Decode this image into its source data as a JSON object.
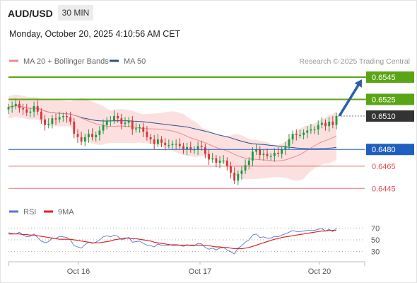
{
  "header": {
    "symbol": "AUD/USD",
    "timeframe": "30 MIN",
    "datetime": "Monday, October 20, 2025 4:10:56 AM CET"
  },
  "chart_data": [
    {
      "type": "candlestick",
      "legend": [
        {
          "label": "MA 20 + Bollinger Bands",
          "color": "#f08a8a"
        },
        {
          "label": "MA 50",
          "color": "#2a4f8f"
        }
      ],
      "credit": "Research © 2025 Trading Central",
      "x_ticks": [
        "Oct 16",
        "Oct 17",
        "Oct 20"
      ],
      "ylim": [
        0.6435,
        0.6552
      ],
      "levels": [
        {
          "value": 0.6545,
          "label": "0.6545",
          "style": "target",
          "color": "#5aa516"
        },
        {
          "value": 0.6525,
          "label": "0.6525",
          "style": "target",
          "color": "#5aa516"
        },
        {
          "value": 0.651,
          "label": "0.6510",
          "style": "current",
          "color": "#333333"
        },
        {
          "value": 0.648,
          "label": "0.6480",
          "style": "pivot",
          "color": "#1f5fbf"
        },
        {
          "value": 0.6465,
          "label": "0.6465",
          "style": "support",
          "color": "#e05050"
        },
        {
          "value": 0.6445,
          "label": "0.6445",
          "style": "support",
          "color": "#e05050"
        }
      ],
      "colors": {
        "up": "#1e9a3e",
        "down": "#d93535",
        "band_fill": "#fbd6d6",
        "ma20": "#f08a8a",
        "ma50": "#2a4f8f",
        "arrow": "#2a5fa8"
      },
      "series": {
        "close": [
          0.6518,
          0.6519,
          0.6521,
          0.6517,
          0.6516,
          0.6513,
          0.6514,
          0.6519,
          0.6514,
          0.6507,
          0.6502,
          0.6503,
          0.6508,
          0.6507,
          0.6509,
          0.651,
          0.6509,
          0.6505,
          0.6494,
          0.6491,
          0.6487,
          0.6491,
          0.6494,
          0.6491,
          0.6493,
          0.6497,
          0.6502,
          0.6506,
          0.6506,
          0.651,
          0.6508,
          0.6503,
          0.6504,
          0.6506,
          0.6498,
          0.6499,
          0.65,
          0.6496,
          0.6491,
          0.6489,
          0.6485,
          0.6489,
          0.6486,
          0.6484,
          0.6484,
          0.6485,
          0.6485,
          0.6483,
          0.648,
          0.6482,
          0.648,
          0.648,
          0.6483,
          0.6482,
          0.6476,
          0.6471,
          0.6472,
          0.6468,
          0.647,
          0.647,
          0.6465,
          0.6459,
          0.6452,
          0.6458,
          0.6461,
          0.6466,
          0.647,
          0.6478,
          0.648,
          0.6475,
          0.6476,
          0.6474,
          0.6474,
          0.6477,
          0.6476,
          0.648,
          0.6483,
          0.6489,
          0.6494,
          0.6493,
          0.6493,
          0.6495,
          0.6497,
          0.6498,
          0.6498,
          0.6502,
          0.6504,
          0.6501,
          0.6505,
          0.6502,
          0.651
        ]
      },
      "arrow": {
        "from_value": 0.6511,
        "to_value": 0.6543
      }
    },
    {
      "type": "line",
      "legend": [
        {
          "label": "RSI",
          "color": "#5577cc"
        },
        {
          "label": "9MA",
          "color": "#dd2222"
        }
      ],
      "y_ticks": [
        70,
        50,
        30
      ],
      "ylim": [
        20,
        80
      ],
      "series": [
        {
          "name": "RSI",
          "values": [
            62,
            61,
            60,
            63,
            58,
            55,
            56,
            60,
            54,
            48,
            45,
            47,
            53,
            52,
            56,
            55,
            54,
            50,
            40,
            38,
            36,
            42,
            46,
            44,
            46,
            50,
            55,
            57,
            55,
            58,
            56,
            50,
            52,
            54,
            46,
            47,
            48,
            44,
            41,
            40,
            38,
            43,
            41,
            40,
            41,
            42,
            42,
            41,
            39,
            42,
            40,
            40,
            44,
            43,
            37,
            34,
            36,
            33,
            36,
            37,
            33,
            30,
            26,
            36,
            40,
            46,
            50,
            58,
            60,
            54,
            55,
            53,
            53,
            56,
            55,
            58,
            60,
            63,
            66,
            64,
            64,
            65,
            66,
            66,
            66,
            68,
            69,
            65,
            68,
            64,
            70
          ]
        },
        {
          "name": "9MA",
          "values": [
            60,
            60,
            60,
            60,
            59,
            59,
            58,
            58,
            57,
            56,
            55,
            54,
            53,
            52,
            51,
            51,
            51,
            51,
            50,
            49,
            48,
            47,
            46,
            45,
            45,
            45,
            46,
            47,
            48,
            50,
            51,
            52,
            53,
            53,
            52,
            52,
            51,
            50,
            49,
            48,
            46,
            45,
            44,
            43,
            42,
            41,
            41,
            41,
            41,
            41,
            41,
            41,
            41,
            41,
            40,
            40,
            39,
            38,
            38,
            37,
            37,
            36,
            35,
            35,
            35,
            36,
            37,
            39,
            41,
            43,
            45,
            47,
            49,
            51,
            52,
            54,
            55,
            56,
            57,
            58,
            59,
            60,
            61,
            62,
            63,
            64,
            65,
            65,
            66,
            66,
            66
          ]
        }
      ]
    }
  ]
}
